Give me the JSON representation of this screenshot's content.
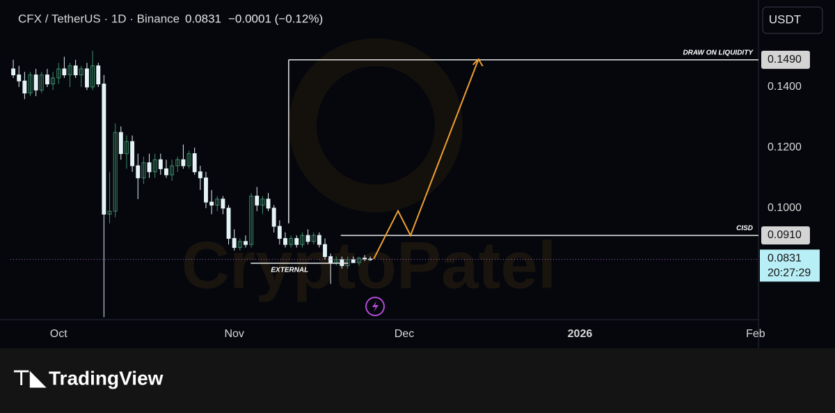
{
  "chart_data": {
    "type": "candlestick",
    "title": "CFX / TetherUS · 1D · Binance",
    "last_price": 0.0831,
    "last_price_label": "0.0831",
    "change": "−0.0001 (−0.12%)",
    "currency_button": "USDT",
    "countdown": "20:27:29",
    "watermark": "CryptoPatel",
    "brand": "TradingView",
    "up_color": "#3d8c6a",
    "down_color": "#e4f3f6",
    "x": [
      0,
      1,
      2,
      3,
      4,
      5,
      6,
      7,
      8,
      9,
      10,
      11,
      12,
      13,
      14,
      15,
      16,
      17,
      18,
      19,
      20,
      21,
      22,
      23,
      24,
      25,
      26,
      27,
      28,
      29,
      30,
      31,
      32,
      33,
      34,
      35,
      36,
      37,
      38,
      39,
      40,
      41,
      42,
      43,
      44,
      45,
      46,
      47,
      48,
      49,
      50,
      51,
      52,
      53,
      54,
      55,
      56,
      57,
      58,
      59,
      60,
      61,
      62,
      63
    ],
    "open": [
      0.146,
      0.144,
      0.142,
      0.138,
      0.144,
      0.139,
      0.144,
      0.141,
      0.143,
      0.146,
      0.144,
      0.147,
      0.144,
      0.146,
      0.14,
      0.147,
      0.141,
      0.098,
      0.099,
      0.125,
      0.118,
      0.122,
      0.114,
      0.11,
      0.115,
      0.112,
      0.116,
      0.113,
      0.111,
      0.114,
      0.116,
      0.114,
      0.118,
      0.112,
      0.11,
      0.102,
      0.101,
      0.103,
      0.1,
      0.09,
      0.087,
      0.089,
      0.088,
      0.104,
      0.101,
      0.103,
      0.1,
      0.094,
      0.09,
      0.088,
      0.09,
      0.088,
      0.091,
      0.089,
      0.091,
      0.088,
      0.084,
      0.082,
      0.083,
      0.081,
      0.083,
      0.082,
      0.0835,
      0.0832
    ],
    "high": [
      0.149,
      0.147,
      0.145,
      0.145,
      0.146,
      0.145,
      0.146,
      0.145,
      0.148,
      0.15,
      0.148,
      0.149,
      0.147,
      0.148,
      0.152,
      0.148,
      0.144,
      0.112,
      0.128,
      0.127,
      0.124,
      0.124,
      0.118,
      0.117,
      0.118,
      0.118,
      0.118,
      0.116,
      0.116,
      0.117,
      0.121,
      0.119,
      0.12,
      0.114,
      0.112,
      0.106,
      0.104,
      0.104,
      0.101,
      0.093,
      0.09,
      0.091,
      0.105,
      0.107,
      0.104,
      0.105,
      0.101,
      0.096,
      0.092,
      0.091,
      0.091,
      0.092,
      0.093,
      0.092,
      0.092,
      0.09,
      0.085,
      0.084,
      0.084,
      0.084,
      0.084,
      0.084,
      0.0845,
      0.084
    ],
    "low": [
      0.143,
      0.14,
      0.136,
      0.137,
      0.137,
      0.138,
      0.14,
      0.139,
      0.141,
      0.143,
      0.14,
      0.143,
      0.14,
      0.139,
      0.139,
      0.14,
      0.064,
      0.095,
      0.097,
      0.116,
      0.113,
      0.112,
      0.103,
      0.108,
      0.11,
      0.11,
      0.111,
      0.11,
      0.109,
      0.112,
      0.113,
      0.113,
      0.111,
      0.106,
      0.1,
      0.098,
      0.099,
      0.098,
      0.088,
      0.086,
      0.086,
      0.087,
      0.087,
      0.099,
      0.098,
      0.099,
      0.092,
      0.088,
      0.087,
      0.087,
      0.087,
      0.087,
      0.088,
      0.088,
      0.087,
      0.083,
      0.075,
      0.081,
      0.08,
      0.08,
      0.082,
      0.081,
      0.0825,
      0.0826
    ],
    "close": [
      0.144,
      0.142,
      0.138,
      0.144,
      0.139,
      0.144,
      0.141,
      0.143,
      0.146,
      0.144,
      0.147,
      0.144,
      0.146,
      0.14,
      0.147,
      0.141,
      0.098,
      0.099,
      0.125,
      0.118,
      0.122,
      0.114,
      0.11,
      0.115,
      0.112,
      0.116,
      0.113,
      0.111,
      0.114,
      0.116,
      0.114,
      0.118,
      0.112,
      0.11,
      0.102,
      0.101,
      0.103,
      0.1,
      0.09,
      0.087,
      0.089,
      0.088,
      0.104,
      0.101,
      0.103,
      0.1,
      0.094,
      0.09,
      0.088,
      0.09,
      0.088,
      0.091,
      0.089,
      0.091,
      0.088,
      0.084,
      0.082,
      0.083,
      0.081,
      0.083,
      0.082,
      0.0835,
      0.0832,
      0.0831
    ],
    "xlim": [
      -0.5,
      131.5
    ],
    "ylim": [
      0.0634,
      0.1669
    ],
    "xticks": [
      {
        "value": 8,
        "label": "Oct"
      },
      {
        "value": 39,
        "label": "Nov"
      },
      {
        "value": 69,
        "label": "Dec"
      },
      {
        "value": 100,
        "label": "2026"
      },
      {
        "value": 131,
        "label": "Feb"
      }
    ],
    "yticks": [
      {
        "value": 0.1,
        "label": "0.1000"
      },
      {
        "value": 0.12,
        "label": "0.1200"
      },
      {
        "value": 0.14,
        "label": "0.1400"
      }
    ],
    "grid": false,
    "levels": [
      {
        "name": "DRAW ON LIQUIDITY",
        "value": 0.149,
        "label": "0.1490",
        "from": 48.6
      },
      {
        "name": "CISD",
        "value": 0.091,
        "label": "0.0910",
        "from": 57.8
      }
    ],
    "external": {
      "name": "EXTERNAL",
      "value": 0.0818,
      "from": 41.9,
      "to": 59.1
    },
    "range_line": {
      "x": 48.6,
      "from": 0.149,
      "to": 0.095
    },
    "projection": {
      "color": "#f0a030",
      "x": [
        63.6,
        67.9,
        70.1,
        82.1
      ],
      "y": [
        0.0832,
        0.0991,
        0.091,
        0.1492
      ]
    }
  }
}
